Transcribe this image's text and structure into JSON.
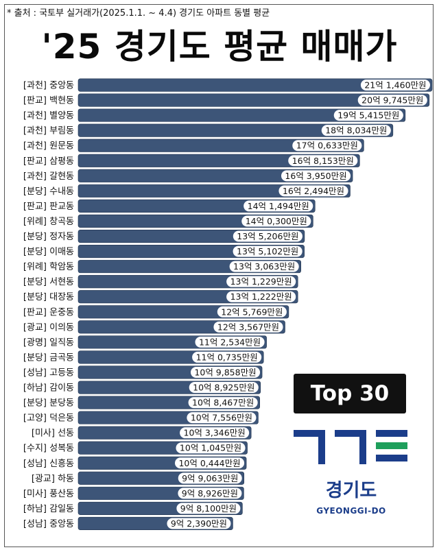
{
  "source_note": "* 출처 : 국토부 실거래가(2025.1.1. ~ 4.4) 경기도 아파트 동별 평균",
  "title": "'25 경기도 평균 매매가",
  "badge": "Top 30",
  "logo": {
    "text_ko": "경기도",
    "text_en": "GYEONGGI-DO",
    "colors": {
      "blue": "#1b3d8a",
      "green": "#1e9f5b"
    }
  },
  "colors": {
    "bar": "#3d5578",
    "bar_edge": "#22354f",
    "label_bg": "#ffffff"
  },
  "chart_data": {
    "type": "bar",
    "orientation": "horizontal",
    "unit": "만원",
    "categories": [
      "[과천] 중앙동",
      "[판교] 백현동",
      "[과천] 별양동",
      "[과천] 부림동",
      "[과천] 원문동",
      "[판교] 삼평동",
      "[과천] 갈현동",
      "[분당] 수내동",
      "[판교] 판교동",
      "[위례] 창곡동",
      "[분당] 정자동",
      "[분당] 이매동",
      "[위례] 학암동",
      "[분당] 서현동",
      "[분당] 대장동",
      "[판교] 운중동",
      "[광교] 이의동",
      "[광명] 일직동",
      "[분당] 금곡동",
      "[성남] 고등동",
      "[하남] 감이동",
      "[분당] 분당동",
      "[고양] 덕은동",
      "[미사] 선동",
      "[수지] 성복동",
      "[성남] 신흥동",
      "[광교] 하동",
      "[미사] 풍산동",
      "[하남] 감일동",
      "[성남] 중앙동"
    ],
    "values": [
      211460,
      209745,
      195415,
      188034,
      170633,
      168153,
      163950,
      162494,
      141494,
      140300,
      135206,
      135102,
      133063,
      131229,
      131222,
      125769,
      123567,
      112534,
      110735,
      109858,
      108925,
      108467,
      107556,
      103346,
      101045,
      100444,
      99063,
      98926,
      98100,
      92390
    ],
    "value_labels": [
      "21억 1,460만원",
      "20억 9,745만원",
      "19억 5,415만원",
      "18억 8,034만원",
      "17억 0,633만원",
      "16억 8,153만원",
      "16억 3,950만원",
      "16억 2,494만원",
      "14억 1,494만원",
      "14억 0,300만원",
      "13억 5,206만원",
      "13억 5,102만원",
      "13억 3,063만원",
      "13억 1,229만원",
      "13억 1,222만원",
      "12억 5,769만원",
      "12억 3,567만원",
      "11억 2,534만원",
      "11억 0,735만원",
      "10억 9,858만원",
      "10억 8,925만원",
      "10억 8,467만원",
      "10억 7,556만원",
      "10억 3,346만원",
      "10억 1,045만원",
      "10억 0,444만원",
      "9억 9,063만원",
      "9억 8,926만원",
      "9억 8,100만원",
      "9억 2,390만원"
    ]
  }
}
